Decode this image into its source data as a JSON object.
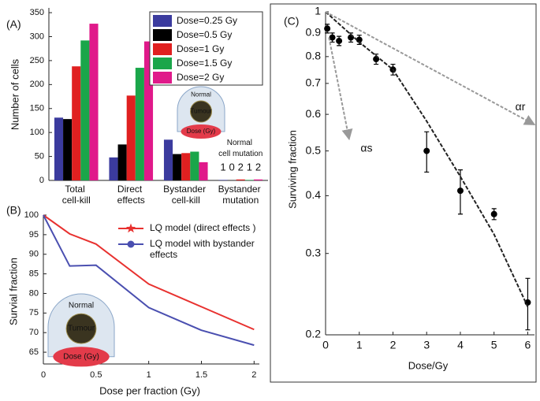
{
  "chart_data": [
    {
      "type": "bar",
      "panel": "(A)",
      "y_label": "Number of cells",
      "categories": [
        "Total cell-kill",
        "Direct effects",
        "Bystander cell-kill",
        "Bystander mutation"
      ],
      "series": [
        {
          "name": "Dose=0.25 Gy",
          "color": "#3b3b9e",
          "values": [
            131,
            48,
            85,
            1
          ]
        },
        {
          "name": "Dose=0.5 Gy",
          "color": "#000000",
          "values": [
            128,
            75,
            55,
            0
          ]
        },
        {
          "name": "Dose=1 Gy",
          "color": "#e02020",
          "values": [
            238,
            177,
            57,
            2
          ]
        },
        {
          "name": "Dose=1.5 Gy",
          "color": "#1aa64a",
          "values": [
            292,
            235,
            60,
            1
          ]
        },
        {
          "name": "Dose=2 Gy",
          "color": "#e0198a",
          "values": [
            327,
            290,
            38,
            2
          ]
        }
      ],
      "ylim": [
        0,
        360
      ],
      "yticks": [
        0,
        50,
        100,
        150,
        200,
        250,
        300,
        350
      ],
      "annotation": "Normal cell mutation",
      "inset_labels": [
        "Normal",
        "Tumour",
        "Dose (Gy)"
      ]
    },
    {
      "type": "line",
      "panel": "(B)",
      "y_label": "Survial fraction",
      "x_label": "Dose per fraction (Gy)",
      "x": [
        0,
        0.25,
        0.5,
        1,
        1.5,
        2
      ],
      "series": [
        {
          "name": "LQ model  (direct effects )",
          "color": "#e8312f",
          "marker": "star",
          "values": [
            100,
            95.2,
            92.6,
            82.4,
            76.6,
            70.8
          ]
        },
        {
          "name": "LQ model with bystander effects",
          "color": "#4a4fb0",
          "marker": "circle",
          "values": [
            100,
            87,
            87.2,
            76.4,
            70.6,
            66.8
          ]
        }
      ],
      "xlim": [
        0,
        2.05
      ],
      "xticks": [
        0,
        0.5,
        1,
        1.5,
        2
      ],
      "ylim": [
        62,
        100
      ],
      "yticks": [
        65,
        70,
        75,
        80,
        85,
        90,
        95,
        100
      ],
      "inset_labels": [
        "Normal",
        "Tumour",
        "Dose (Gy)"
      ]
    },
    {
      "type": "scatter",
      "panel": "(C)",
      "y_label": "Surviving fraction",
      "x_label": "Dose/Gy",
      "log_y": true,
      "series": [
        {
          "style": "points",
          "color": "#000000",
          "x": [
            0.05,
            0.2,
            0.4,
            0.75,
            1,
            1.5,
            2,
            3,
            4,
            5,
            6
          ],
          "values": [
            0.92,
            0.88,
            0.865,
            0.88,
            0.87,
            0.79,
            0.75,
            0.5,
            0.41,
            0.365,
            0.235
          ],
          "errors": [
            0.02,
            0.02,
            0.02,
            0.02,
            0.02,
            0.02,
            0.02,
            0.05,
            0.045,
            0.01,
            0.03
          ]
        },
        {
          "style": "dashed",
          "color": "#222222",
          "x": [
            0,
            1,
            2,
            3,
            4,
            5,
            6
          ],
          "values": [
            1,
            0.86,
            0.75,
            0.58,
            0.44,
            0.33,
            0.23
          ]
        },
        {
          "name": "αr",
          "style": "arrow",
          "color": "#999999",
          "x": [
            0,
            6.2
          ],
          "values": [
            1,
            0.57
          ]
        },
        {
          "name": "αs",
          "style": "arrow",
          "color": "#999999",
          "x": [
            0.1,
            0.7
          ],
          "values": [
            0.88,
            0.53
          ]
        }
      ],
      "xlim": [
        0,
        6.2
      ],
      "xticks": [
        0,
        1,
        2,
        3,
        4,
        5,
        6
      ],
      "ylim": [
        0.2,
        1
      ],
      "yticks": [
        0.2,
        0.3,
        0.4,
        0.5,
        0.6,
        0.7,
        0.8,
        0.9,
        1
      ]
    }
  ]
}
